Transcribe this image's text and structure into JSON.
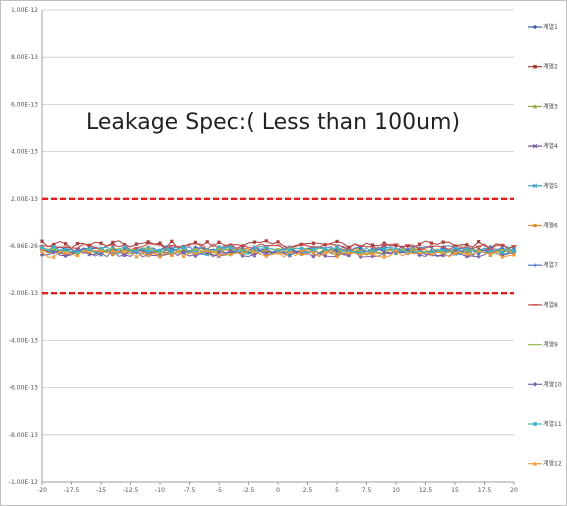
{
  "chart_data": {
    "type": "line",
    "title": "",
    "annotation": "Leakage Spec:( Less than 100um)",
    "xlabel": "",
    "ylabel": "",
    "xlim": [
      -20,
      20
    ],
    "ylim": [
      -1e-12,
      1e-12
    ],
    "x_ticks": [
      -20,
      -17.5,
      -15,
      -12.5,
      -10,
      -7.5,
      -5,
      -2.5,
      0,
      2.5,
      5,
      7.5,
      10,
      12.5,
      15,
      17.5,
      20
    ],
    "x_tick_labels": [
      "-20",
      "-17.5",
      "-15",
      "-12.5",
      "-10",
      "-7.5",
      "-5",
      "-2.5",
      "0",
      "2.5",
      "5",
      "7.5",
      "10",
      "12.5",
      "15",
      "17.5",
      "20"
    ],
    "y_ticks": [
      1e-12,
      8e-13,
      6e-13,
      4e-13,
      2e-13,
      0,
      -2e-13,
      -4e-13,
      -6e-13,
      -8e-13,
      -1e-12
    ],
    "y_tick_labels": [
      "1.00E-12",
      "8.00E-13",
      "6.00E-13",
      "4.00E-13",
      "2.00E-13",
      "-6.96E-26",
      "-2.00E-13",
      "-4.00E-13",
      "-6.00E-13",
      "-8.00E-13",
      "-1.00E-12"
    ],
    "grid": "horizontal",
    "legend_position": "right",
    "spec_limits": {
      "upper": 2e-13,
      "lower": -2e-13,
      "color": "#e02020",
      "style": "dashed"
    },
    "x_range": {
      "start": -20,
      "end": 20,
      "step": 0.5
    },
    "series": [
      {
        "name": "계열1",
        "color": "#3a5ea0",
        "marker": "diamond",
        "base": -1.9e-14,
        "noise": 1.4e-14
      },
      {
        "name": "계열2",
        "color": "#a83c3a",
        "marker": "square",
        "base": 6e-15,
        "noise": 1.6e-14
      },
      {
        "name": "계열3",
        "color": "#8cab3e",
        "marker": "triangle",
        "base": -2.5e-14,
        "noise": 1.5e-14
      },
      {
        "name": "계열4",
        "color": "#6b4f98",
        "marker": "x",
        "base": -2.9e-14,
        "noise": 1.6e-14
      },
      {
        "name": "계열5",
        "color": "#2ea0c0",
        "marker": "x",
        "base": -2.2e-14,
        "noise": 1.5e-14
      },
      {
        "name": "계열6",
        "color": "#e0882a",
        "marker": "circle",
        "base": -2.4e-14,
        "noise": 1.4e-14
      },
      {
        "name": "계열7",
        "color": "#4a78c0",
        "marker": "plus",
        "base": -1.3e-14,
        "noise": 1.4e-14
      },
      {
        "name": "계열8",
        "color": "#c84a48",
        "marker": "dash",
        "base": -3e-15,
        "noise": 1.3e-14
      },
      {
        "name": "계열9",
        "color": "#9bbd55",
        "marker": "dash",
        "base": -2e-14,
        "noise": 1.3e-14
      },
      {
        "name": "계열10",
        "color": "#7f62aa",
        "marker": "diamond",
        "base": -3.1e-14,
        "noise": 1.5e-14
      },
      {
        "name": "계열11",
        "color": "#3bb0c8",
        "marker": "square",
        "base": -1.6e-14,
        "noise": 1.4e-14
      },
      {
        "name": "계열12",
        "color": "#f39a3a",
        "marker": "triangle",
        "base": -3.3e-14,
        "noise": 1.5e-14
      }
    ]
  }
}
